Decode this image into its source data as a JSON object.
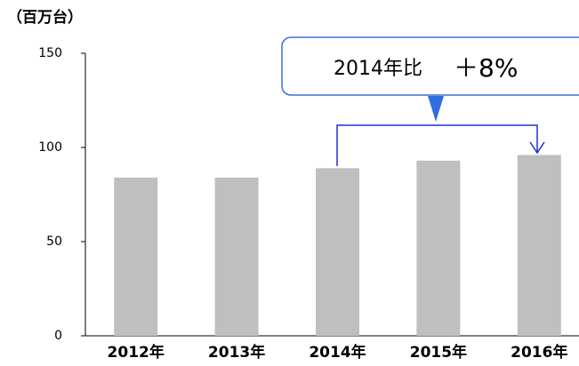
{
  "chart_data": {
    "type": "bar",
    "y_label": "（百万台）",
    "categories": [
      "2012年",
      "2013年",
      "2014年",
      "2015年",
      "2016年"
    ],
    "values": [
      84,
      84,
      89,
      93,
      96
    ],
    "color": "#bfbfbf",
    "ylim": [
      0,
      150
    ],
    "yticks": [
      0,
      50,
      100,
      150
    ],
    "annotation": {
      "base": "2014年比",
      "change": "＋8%"
    }
  }
}
